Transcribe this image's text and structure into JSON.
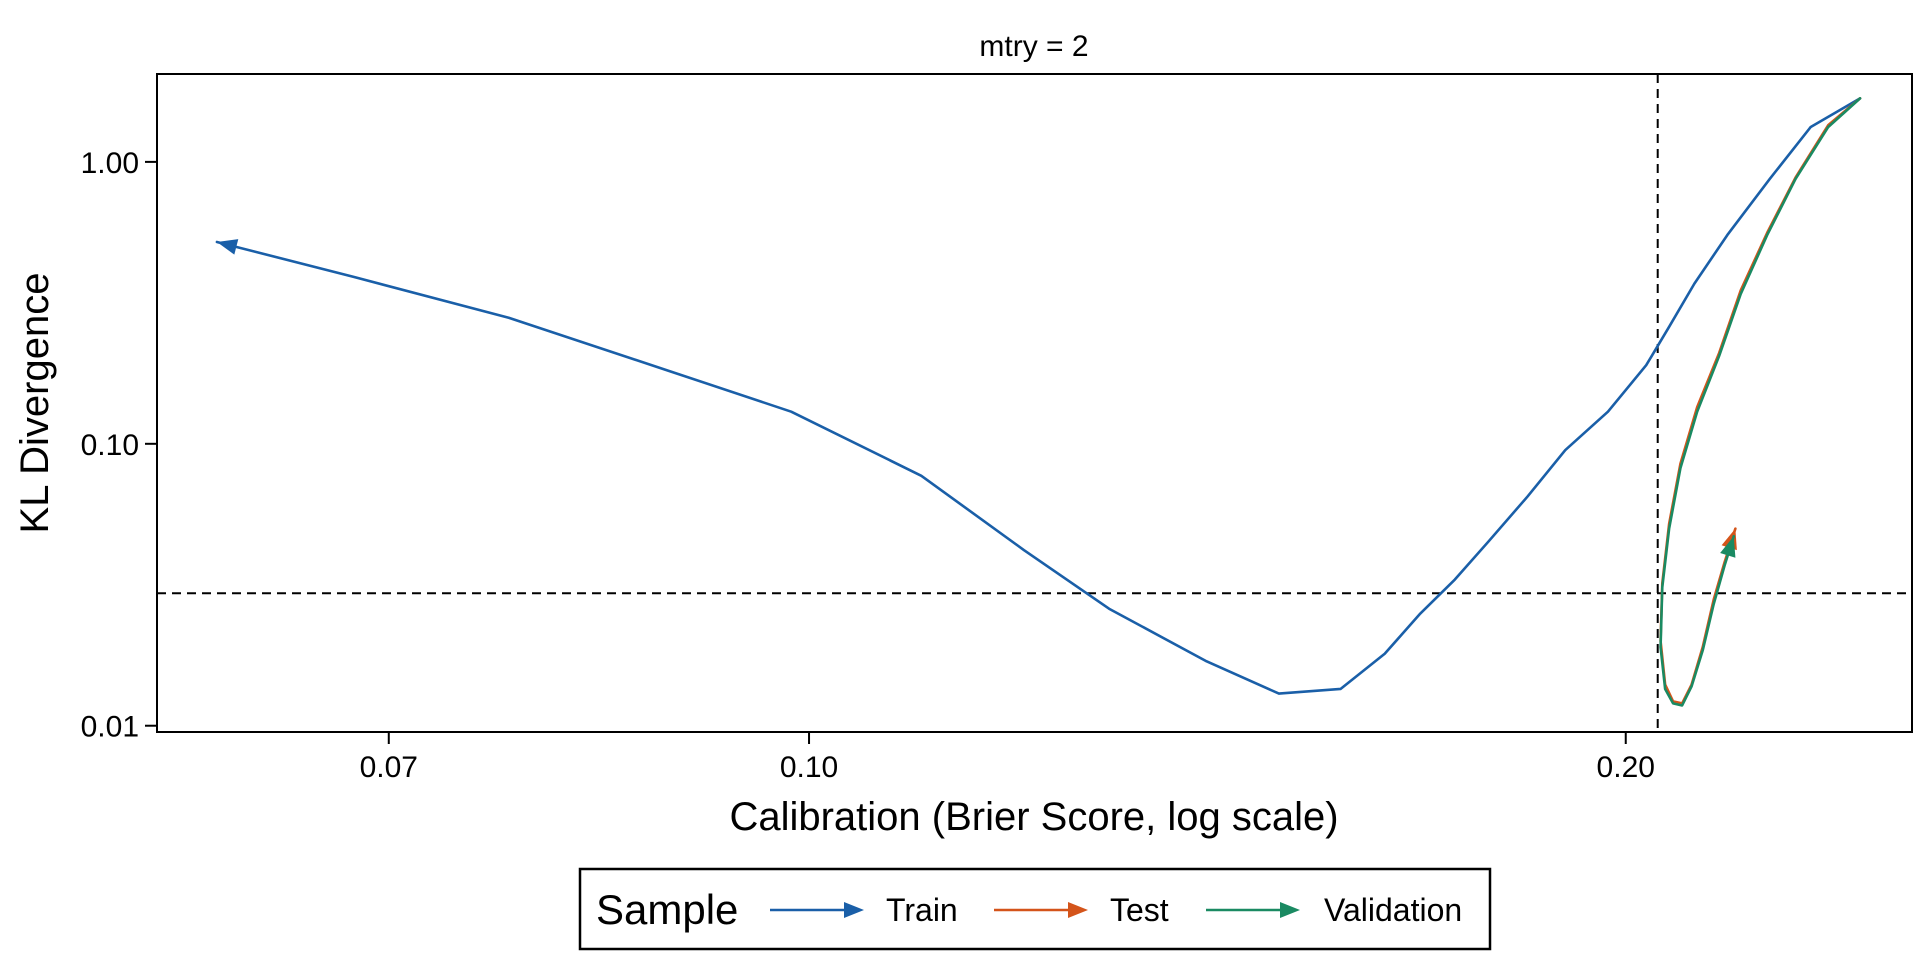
{
  "chart_data": {
    "type": "line",
    "panel_title": "mtry = 2",
    "xlabel": "Calibration (Brier Score, log scale)",
    "ylabel": "KL Divergence",
    "x_scale": "log",
    "y_scale": "log",
    "xlim": [
      0.0575,
      0.255
    ],
    "ylim": [
      0.0095,
      2.05
    ],
    "x_ticks": [
      0.07,
      0.1,
      0.2
    ],
    "x_tick_labels": [
      "0.07",
      "0.10",
      "0.20"
    ],
    "y_ticks": [
      0.01,
      0.1,
      1.0
    ],
    "y_tick_labels": [
      "0.01",
      "0.10",
      "1.00"
    ],
    "reference_lines": {
      "vertical_x": 0.2055,
      "horizontal_y": 0.0295
    },
    "grid": false,
    "legend": {
      "title": "Sample",
      "position": "bottom"
    },
    "series": [
      {
        "name": "Train",
        "color": "#1a5fa8",
        "arrow": "end",
        "points": [
          [
            0.244,
            1.68
          ],
          [
            0.234,
            1.33
          ],
          [
            0.226,
            0.87
          ],
          [
            0.218,
            0.55
          ],
          [
            0.212,
            0.37
          ],
          [
            0.2075,
            0.26
          ],
          [
            0.2035,
            0.19
          ],
          [
            0.197,
            0.13
          ],
          [
            0.19,
            0.095
          ],
          [
            0.184,
            0.065
          ],
          [
            0.178,
            0.045
          ],
          [
            0.173,
            0.033
          ],
          [
            0.168,
            0.025
          ],
          [
            0.163,
            0.018
          ],
          [
            0.157,
            0.0135
          ],
          [
            0.149,
            0.013
          ],
          [
            0.14,
            0.017
          ],
          [
            0.129,
            0.026
          ],
          [
            0.12,
            0.042
          ],
          [
            0.11,
            0.077
          ],
          [
            0.0985,
            0.13
          ],
          [
            0.089,
            0.18
          ],
          [
            0.0775,
            0.28
          ],
          [
            0.068,
            0.39
          ],
          [
            0.0605,
            0.52
          ]
        ]
      },
      {
        "name": "Test",
        "color": "#d4541a",
        "arrow": "end",
        "points": [
          [
            0.244,
            1.68
          ],
          [
            0.2375,
            1.35
          ],
          [
            0.231,
            0.88
          ],
          [
            0.2255,
            0.56
          ],
          [
            0.2205,
            0.35
          ],
          [
            0.2165,
            0.21
          ],
          [
            0.2125,
            0.135
          ],
          [
            0.2095,
            0.085
          ],
          [
            0.2075,
            0.052
          ],
          [
            0.2063,
            0.032
          ],
          [
            0.206,
            0.02
          ],
          [
            0.2068,
            0.014
          ],
          [
            0.2082,
            0.0122
          ],
          [
            0.2098,
            0.012
          ],
          [
            0.2115,
            0.014
          ],
          [
            0.2135,
            0.019
          ],
          [
            0.2155,
            0.028
          ],
          [
            0.2175,
            0.038
          ],
          [
            0.2195,
            0.05
          ]
        ]
      },
      {
        "name": "Validation",
        "color": "#1a8a62",
        "arrow": "end",
        "points": [
          [
            0.244,
            1.68
          ],
          [
            0.2375,
            1.33
          ],
          [
            0.231,
            0.87
          ],
          [
            0.2255,
            0.55
          ],
          [
            0.2205,
            0.34
          ],
          [
            0.2165,
            0.205
          ],
          [
            0.2125,
            0.13
          ],
          [
            0.2095,
            0.082
          ],
          [
            0.2075,
            0.05
          ],
          [
            0.2063,
            0.031
          ],
          [
            0.206,
            0.019
          ],
          [
            0.2068,
            0.0135
          ],
          [
            0.2082,
            0.012
          ],
          [
            0.2098,
            0.0118
          ],
          [
            0.2115,
            0.0138
          ],
          [
            0.2135,
            0.0185
          ],
          [
            0.2155,
            0.027
          ],
          [
            0.2175,
            0.037
          ],
          [
            0.2192,
            0.047
          ]
        ]
      }
    ]
  }
}
